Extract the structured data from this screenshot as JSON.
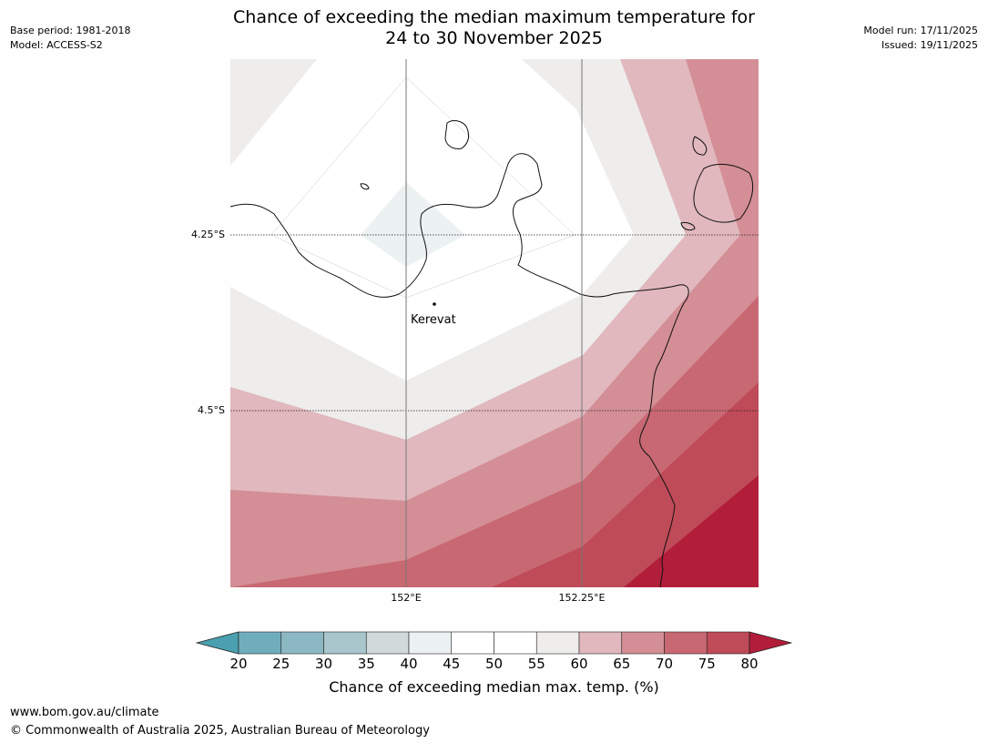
{
  "title": {
    "line1": "Chance of exceeding the median maximum temperature for",
    "line2": "24 to 30 November 2025"
  },
  "meta_left": {
    "base_period": "Base period: 1981-2018",
    "model": "Model: ACCESS-S2"
  },
  "meta_right": {
    "model_run": "Model run: 17/11/2025",
    "issued": "Issued: 19/11/2025"
  },
  "map": {
    "lat_labels": [
      "4.25°S",
      "4.5°S"
    ],
    "lon_labels": [
      "152°E",
      "152.25°E"
    ],
    "place_label": "Kerevat"
  },
  "colorbar": {
    "ticks": [
      "20",
      "25",
      "30",
      "35",
      "40",
      "45",
      "50",
      "55",
      "60",
      "65",
      "70",
      "75",
      "80"
    ],
    "label": "Chance of exceeding median max. temp. (%)",
    "colors": [
      "#4aa0b0",
      "#6fadbc",
      "#8cb8c4",
      "#a8c6cc",
      "#d0dadb",
      "#ecf1f2",
      "#ffffff",
      "#ffffff",
      "#eeedeb",
      "#e0b8be",
      "#d48e95",
      "#c86872",
      "#bf4a58",
      "#b21d3a"
    ]
  },
  "footer": {
    "url": "www.bom.gov.au/climate",
    "copyright": "© Commonwealth of Australia 2025, Australian Bureau of Meteorology"
  }
}
